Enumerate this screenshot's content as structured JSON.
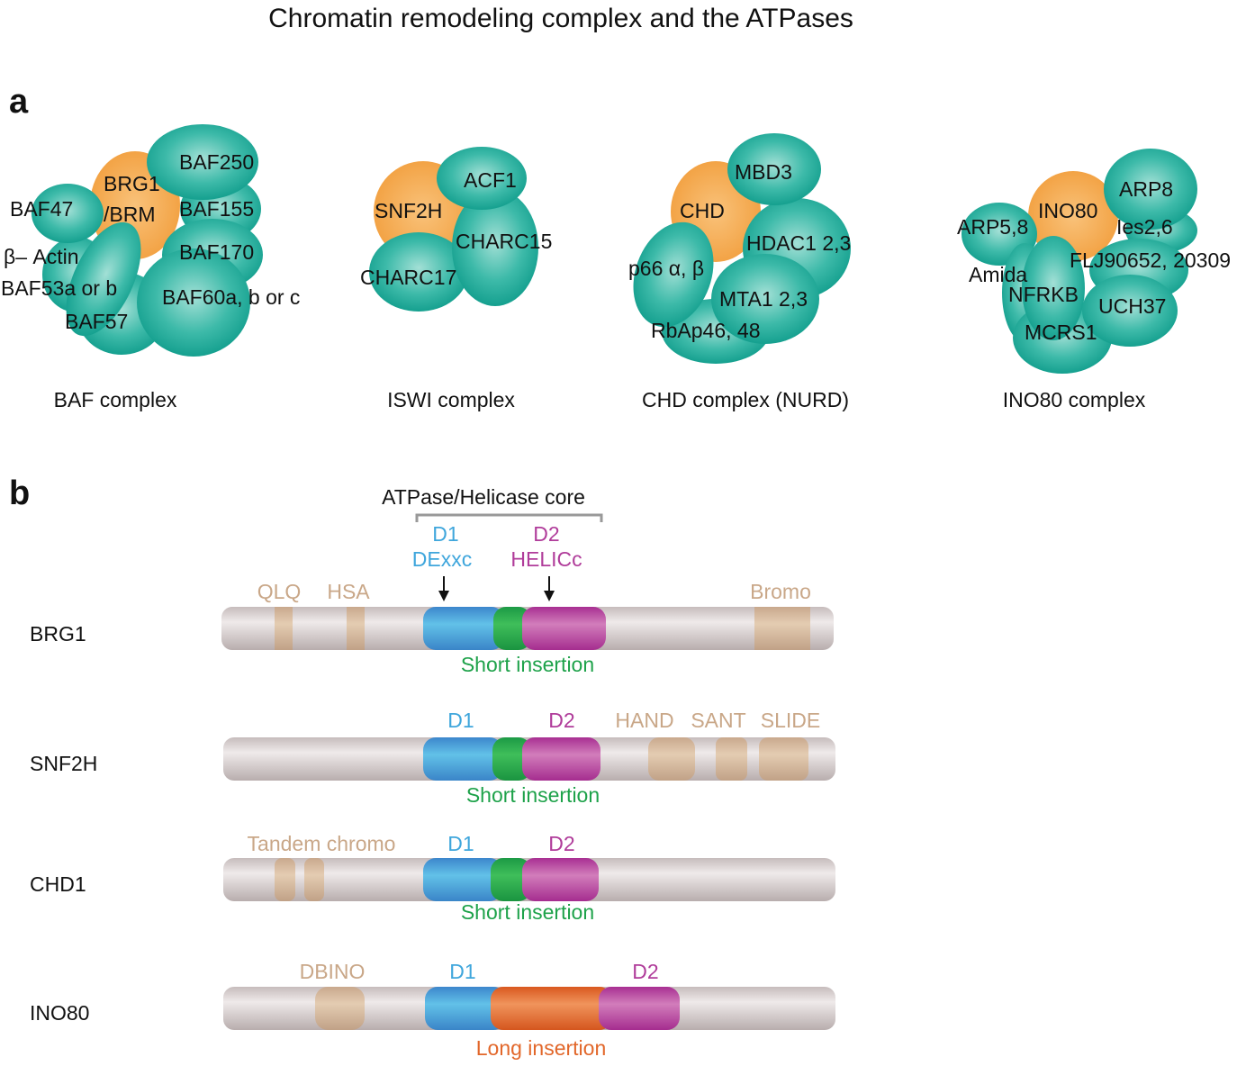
{
  "title": "Chromatin remodeling complex and the ATPases",
  "panel_a": {
    "letter": "a",
    "complexes": [
      {
        "caption": "BAF complex",
        "atpase": [
          "BRG1",
          "/BRM"
        ],
        "subunits": [
          "BAF250",
          "BAF155",
          "BAF47",
          "β– Actin",
          "BAF170",
          "BAF53a or b",
          "BAF60a, b or c",
          "BAF57"
        ]
      },
      {
        "caption": "ISWI complex",
        "atpase": [
          "SNF2H"
        ],
        "subunits": [
          "ACF1",
          "CHARC15",
          "CHARC17"
        ]
      },
      {
        "caption": "CHD complex (NURD)",
        "atpase": [
          "CHD"
        ],
        "subunits": [
          "MBD3",
          "HDAC1 2,3",
          "p66 α, β",
          "MTA1 2,3",
          "RbAp46, 48"
        ]
      },
      {
        "caption": "INO80 complex",
        "atpase": [
          "INO80"
        ],
        "subunits": [
          "ARP8",
          "ARP5,8",
          "Ies2,6",
          "FLJ90652, 20309",
          "Amida",
          "NFRKB",
          "UCH37",
          "MCRS1"
        ]
      }
    ]
  },
  "panel_b": {
    "letter": "b",
    "core_label": "ATPase/Helicase core",
    "d1": "D1",
    "d1_sub": "DExxc",
    "d2": "D2",
    "d2_sub": "HELICc",
    "proteins": [
      {
        "name": "BRG1",
        "domains": [
          "QLQ",
          "HSA",
          "Bromo"
        ],
        "insertion": "Short insertion"
      },
      {
        "name": "SNF2H",
        "domains": [
          "D1",
          "D2",
          "HAND",
          "SANT",
          "SLIDE"
        ],
        "insertion": "Short insertion"
      },
      {
        "name": "CHD1",
        "domains": [
          "Tandem chromo",
          "D1",
          "D2"
        ],
        "insertion": "Short insertion"
      },
      {
        "name": "INO80",
        "domains": [
          "DBINO",
          "D1",
          "D2"
        ],
        "insertion": "Long insertion"
      }
    ]
  },
  "colors": {
    "teal": "#1fa899",
    "atpase": "#f5a94a",
    "d1": "#3fa6dc",
    "d2": "#b03c9a",
    "short_insertion": "#1ea24a",
    "long_insertion": "#e2672a",
    "accessory_domain": "#c9a788"
  }
}
